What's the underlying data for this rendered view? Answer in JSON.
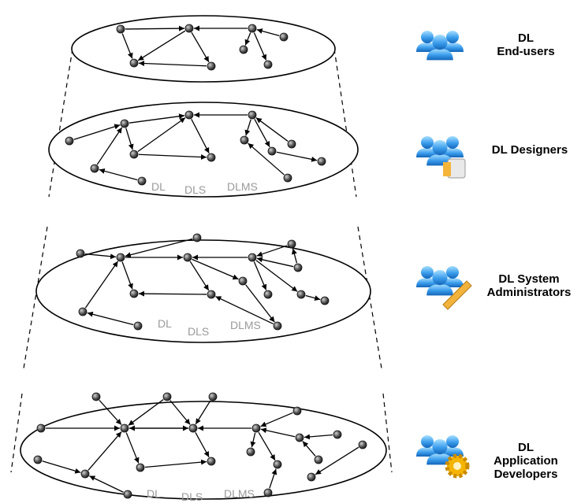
{
  "layers": [
    {
      "id": "end-users",
      "labels": [],
      "role": {
        "lines": [
          "DL",
          "End-users"
        ],
        "badge": "none-icon"
      }
    },
    {
      "id": "designers",
      "labels": [
        "DL",
        "DLS",
        "DLMS"
      ],
      "role": {
        "lines": [
          "DL Designers"
        ],
        "badge": "document-icon"
      }
    },
    {
      "id": "system-administrators",
      "labels": [
        "DL",
        "DLS",
        "DLMS"
      ],
      "role": {
        "lines": [
          "DL System",
          "Administrators"
        ],
        "badge": "pencil-icon"
      }
    },
    {
      "id": "application-developers",
      "labels": [
        "DL",
        "DLS",
        "DLMS"
      ],
      "role": {
        "lines": [
          "DL",
          "Application",
          "Developers"
        ],
        "badge": "gear-icon"
      }
    }
  ],
  "colors": {
    "node": "#555555",
    "edge": "#000000",
    "layer_label": "#9a9a9a",
    "cloud_top": "#8fd3ff",
    "cloud_bottom": "#1e7fd6"
  }
}
